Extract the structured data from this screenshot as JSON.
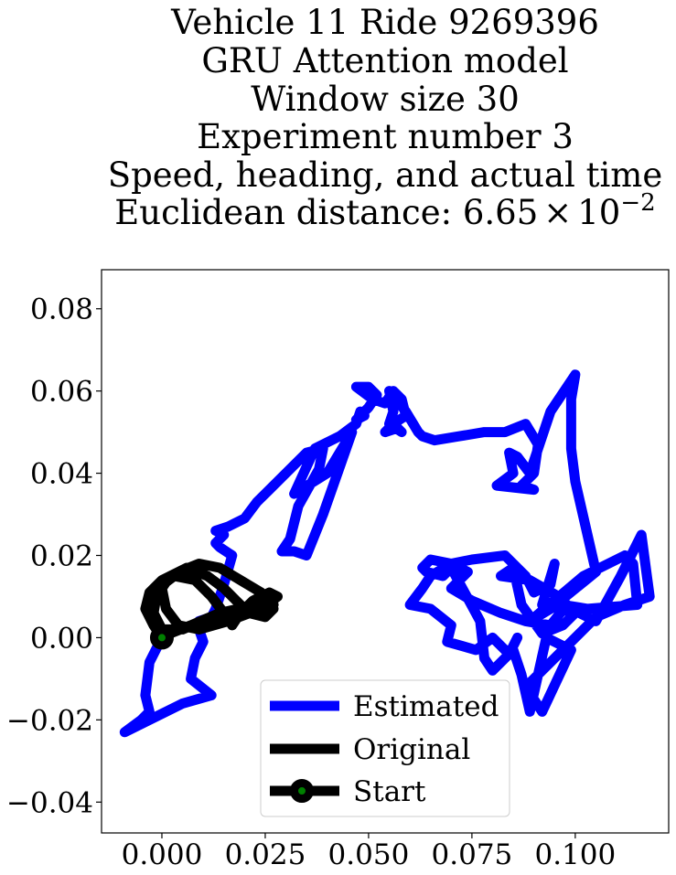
{
  "chart_data": {
    "type": "line",
    "title_lines": [
      "Vehicle 11 Ride 9269396",
      "GRU Attention model",
      "Window size 30",
      "Experiment number 3",
      "Speed, heading, and actual time"
    ],
    "title_metric_prefix": "Euclidean distance: 6.65",
    "title_metric_times": "×",
    "title_metric_base": "10",
    "title_metric_exp": "−2",
    "xlim": [
      -0.0146,
      0.1226
    ],
    "ylim": [
      -0.0475,
      0.0895
    ],
    "xticks": [
      0.0,
      0.025,
      0.05,
      0.075,
      0.1
    ],
    "yticks": [
      -0.04,
      -0.02,
      0.0,
      0.02,
      0.04,
      0.06,
      0.08
    ],
    "xtick_labels": [
      "0.000",
      "0.025",
      "0.050",
      "0.075",
      "0.100"
    ],
    "ytick_labels": [
      "−0.04",
      "−0.02",
      "0.00",
      "0.02",
      "0.04",
      "0.06",
      "0.08"
    ],
    "grid": false,
    "legend_position": "lower center",
    "series": [
      {
        "name": "Estimated",
        "color": "#0000ff",
        "x": [
          0.0,
          -0.003,
          -0.004,
          -0.003,
          -0.005,
          -0.009,
          0.005,
          0.012,
          0.007,
          0.008,
          0.01,
          0.009,
          0.009,
          0.012,
          0.013,
          0.015,
          0.017,
          0.014,
          0.013,
          0.015,
          0.013,
          0.016,
          0.02,
          0.023,
          0.026,
          0.035,
          0.039,
          0.038,
          0.033,
          0.031,
          0.029,
          0.032,
          0.035,
          0.039,
          0.046,
          0.04,
          0.032,
          0.037,
          0.043,
          0.047,
          0.048,
          0.049,
          0.047,
          0.05,
          0.052,
          0.05,
          0.047,
          0.051,
          0.054,
          0.056,
          0.058,
          0.059,
          0.056,
          0.054,
          0.057,
          0.058,
          0.055,
          0.056,
          0.055,
          0.059,
          0.062,
          0.063,
          0.066,
          0.072,
          0.078,
          0.083,
          0.088,
          0.091,
          0.09,
          0.087,
          0.09,
          0.081,
          0.085,
          0.084,
          0.086,
          0.089,
          0.094,
          0.1,
          0.099,
          0.099,
          0.1,
          0.105,
          0.094,
          0.089,
          0.102,
          0.112,
          0.114,
          0.115,
          0.103,
          0.097,
          0.105,
          0.111,
          0.116,
          0.118,
          0.112,
          0.105,
          0.095,
          0.088,
          0.092,
          0.099,
          0.093,
          0.089,
          0.087,
          0.085,
          0.08,
          0.078,
          0.077,
          0.07,
          0.068,
          0.064,
          0.063,
          0.065,
          0.07,
          0.075,
          0.083,
          0.088,
          0.09,
          0.094,
          0.095,
          0.092,
          0.1,
          0.097,
          0.092,
          0.087,
          0.085,
          0.082,
          0.089,
          0.096,
          0.098,
          0.094,
          0.088,
          0.082,
          0.075,
          0.07,
          0.074,
          0.07,
          0.065,
          0.063,
          0.06,
          0.065,
          0.07,
          0.069,
          0.076,
          0.08,
          0.084,
          0.086
        ],
        "y": [
          0.0,
          -0.006,
          -0.014,
          -0.018,
          -0.02,
          -0.023,
          -0.016,
          -0.014,
          -0.01,
          -0.005,
          -0.001,
          0.002,
          0.004,
          0.005,
          0.007,
          0.013,
          0.02,
          0.022,
          0.023,
          0.025,
          0.026,
          0.027,
          0.029,
          0.033,
          0.036,
          0.045,
          0.046,
          0.041,
          0.032,
          0.024,
          0.021,
          0.021,
          0.02,
          0.03,
          0.05,
          0.04,
          0.035,
          0.046,
          0.049,
          0.052,
          0.055,
          0.054,
          0.053,
          0.056,
          0.059,
          0.061,
          0.061,
          0.058,
          0.057,
          0.06,
          0.058,
          0.054,
          0.052,
          0.05,
          0.051,
          0.05,
          0.052,
          0.055,
          0.06,
          0.055,
          0.05,
          0.049,
          0.048,
          0.049,
          0.05,
          0.05,
          0.052,
          0.047,
          0.04,
          0.037,
          0.036,
          0.037,
          0.04,
          0.045,
          0.044,
          0.04,
          0.055,
          0.064,
          0.058,
          0.046,
          0.038,
          0.016,
          0.007,
          0.004,
          0.015,
          0.02,
          0.018,
          0.008,
          0.007,
          0.008,
          0.004,
          0.015,
          0.025,
          0.01,
          0.008,
          0.005,
          -0.005,
          -0.012,
          -0.018,
          -0.003,
          0.0,
          -0.018,
          -0.009,
          -0.003,
          -0.008,
          -0.005,
          0.004,
          0.017,
          0.015,
          0.016,
          0.017,
          0.019,
          0.018,
          0.019,
          0.02,
          0.015,
          0.011,
          0.013,
          0.018,
          0.008,
          0.006,
          0.003,
          0.001,
          0.008,
          0.017,
          0.015,
          0.014,
          0.01,
          0.008,
          0.003,
          0.004,
          0.006,
          0.009,
          0.012,
          0.016,
          0.018,
          0.015,
          0.012,
          0.008,
          0.007,
          0.003,
          -0.001,
          -0.003,
          0.0,
          -0.004,
          0.0
        ]
      },
      {
        "name": "Original",
        "color": "#000000",
        "x": [
          0.0,
          -0.002,
          -0.004,
          -0.003,
          0.0,
          0.004,
          0.009,
          0.014,
          0.019,
          0.024,
          0.027,
          0.026,
          0.02,
          0.012,
          0.005,
          0.0,
          -0.002,
          -0.001,
          0.003,
          0.008,
          0.012,
          0.015,
          0.017,
          0.019,
          0.022,
          0.026,
          0.028,
          0.024,
          0.016,
          0.009,
          0.004,
          0.001,
          0.0,
          0.002,
          0.006,
          0.011,
          0.015,
          0.018,
          0.021,
          0.025,
          0.027,
          0.023,
          0.014,
          0.007,
          0.002,
          0.0
        ],
        "y": [
          0.0,
          0.003,
          0.007,
          0.011,
          0.014,
          0.016,
          0.018,
          0.017,
          0.014,
          0.011,
          0.008,
          0.006,
          0.006,
          0.005,
          0.002,
          0.002,
          0.006,
          0.012,
          0.015,
          0.014,
          0.01,
          0.006,
          0.003,
          0.006,
          0.009,
          0.011,
          0.01,
          0.007,
          0.004,
          0.002,
          0.003,
          0.007,
          0.012,
          0.015,
          0.017,
          0.015,
          0.012,
          0.009,
          0.006,
          0.005,
          0.007,
          0.008,
          0.006,
          0.003,
          0.001,
          0.0
        ]
      },
      {
        "name": "Start",
        "color": "#008000",
        "edge_color": "#000000",
        "marker": "circle",
        "x": [
          0.0
        ],
        "y": [
          0.0
        ]
      }
    ]
  }
}
